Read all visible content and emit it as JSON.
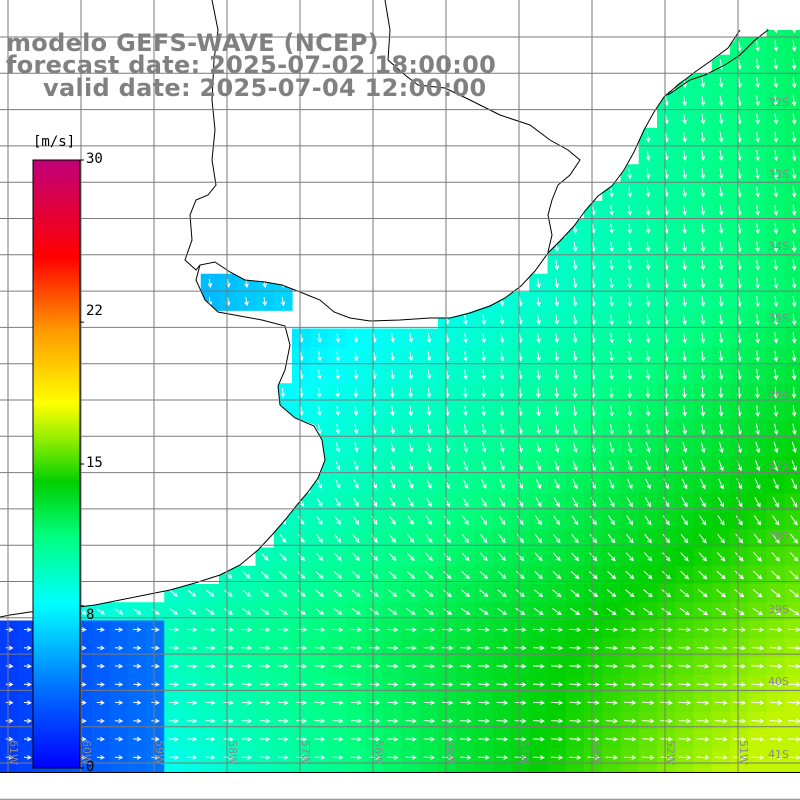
{
  "title": {
    "line1": "modelo GEFS-WAVE (NCEP)",
    "line2": "forecast date: 2025-07-02 18:00:00",
    "line3": "valid date: 2025-07-04 12:00:00"
  },
  "colorbar": {
    "unit": "[m/s]",
    "ticks": [
      "30",
      "22",
      "15",
      "8",
      "0"
    ],
    "tick_values": [
      30,
      22,
      15,
      8,
      0
    ],
    "colors": [
      "#0000ff",
      "#00b4ff",
      "#00ffff",
      "#00ff60",
      "#00cc00",
      "#ffff00",
      "#ff9900",
      "#ff0000",
      "#c0007a"
    ]
  },
  "map": {
    "lat_labels": [
      "32S",
      "33S",
      "34S",
      "35S",
      "36S",
      "37S",
      "38S",
      "39S",
      "40S",
      "41S"
    ],
    "lon_labels": [
      "61W",
      "60W",
      "59W",
      "58W",
      "57W",
      "56W",
      "55W",
      "54W",
      "53W",
      "52W",
      "51W"
    ],
    "land_color": "#ffffff",
    "grid_color": "#7a7a7a",
    "arrow_color": "#ffffff"
  }
}
